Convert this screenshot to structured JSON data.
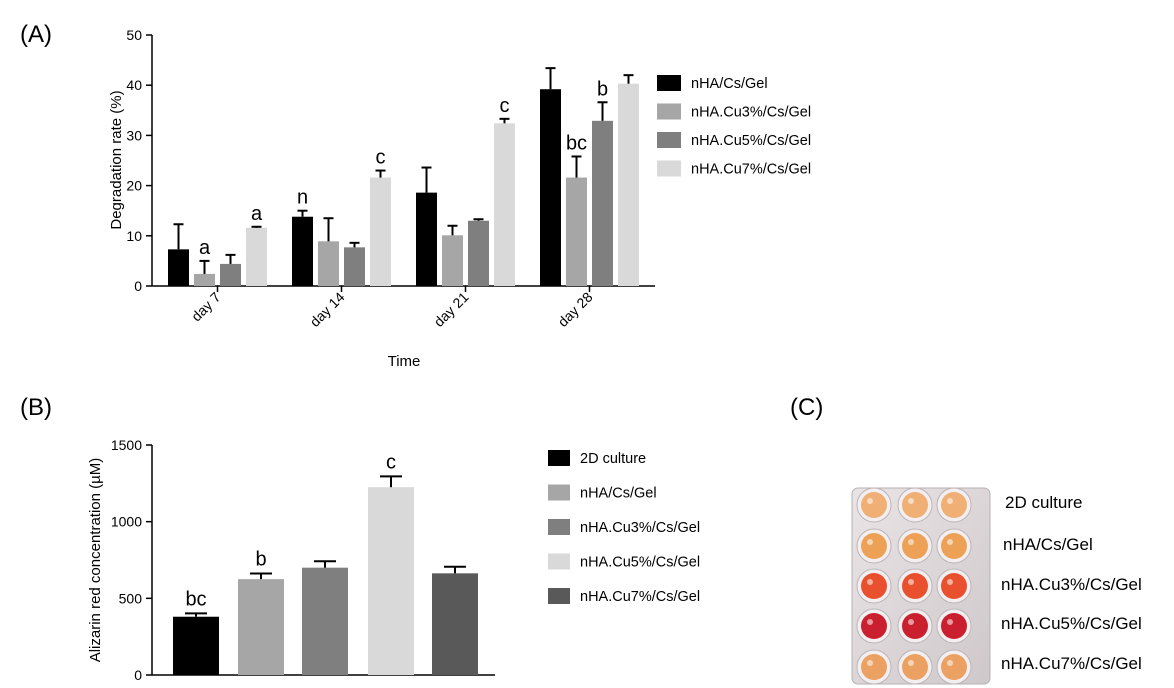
{
  "panels": {
    "a": "(A)",
    "b": "(B)",
    "c": "(C)"
  },
  "chart_data": [
    {
      "id": "A",
      "type": "bar",
      "title": "",
      "xlabel": "Time",
      "ylabel": "Degradation rate (%)",
      "ylim": [
        0,
        50
      ],
      "yticks": [
        0,
        10,
        20,
        30,
        40,
        50
      ],
      "categories": [
        "day 7",
        "day 14",
        "day 21",
        "day 28"
      ],
      "series": [
        {
          "name": "nHA/Cs/Gel",
          "color": "#000000",
          "values": [
            7.3,
            13.8,
            18.6,
            39.2
          ],
          "errors": [
            5.0,
            1.2,
            5.0,
            4.2
          ],
          "labels": [
            "",
            "n",
            "",
            ""
          ]
        },
        {
          "name": "nHA.Cu3%/Cs/Gel",
          "color": "#a6a6a6",
          "values": [
            2.4,
            8.9,
            10.1,
            21.6
          ],
          "errors": [
            2.6,
            4.6,
            1.9,
            4.2
          ],
          "labels": [
            "a",
            "",
            "",
            "bc"
          ]
        },
        {
          "name": "nHA.Cu5%/Cs/Gel",
          "color": "#7f7f7f",
          "values": [
            4.4,
            7.7,
            13.0,
            32.9
          ],
          "errors": [
            1.8,
            0.9,
            0.3,
            3.7
          ],
          "labels": [
            "",
            "",
            "",
            "b"
          ]
        },
        {
          "name": "nHA.Cu7%/Cs/Gel",
          "color": "#d9d9d9",
          "values": [
            11.6,
            21.6,
            32.4,
            40.3
          ],
          "errors": [
            0.2,
            1.4,
            0.9,
            1.7
          ],
          "labels": [
            "a",
            "c",
            "c",
            ""
          ]
        }
      ]
    },
    {
      "id": "B",
      "type": "bar",
      "title": "",
      "xlabel": "",
      "ylabel": "Alizarin red concentration (µM)",
      "ylim": [
        0,
        1500
      ],
      "yticks": [
        0,
        500,
        1000,
        1500
      ],
      "categories": [
        "2D culture",
        "nHA/Cs/Gel",
        "nHA.Cu3%/Cs/Gel",
        "nHA.Cu5%/Cs/Gel",
        "nHA.Cu7%/Cs/Gel"
      ],
      "colors": [
        "#000000",
        "#a6a6a6",
        "#7f7f7f",
        "#d9d9d9",
        "#595959"
      ],
      "values": [
        380,
        625,
        700,
        1225,
        663
      ],
      "errors": [
        22,
        37,
        42,
        70,
        43
      ],
      "labels": [
        "bc",
        "b",
        "",
        "c",
        ""
      ]
    }
  ],
  "photo": {
    "labels": [
      "2D culture",
      "nHA/Cs/Gel",
      "nHA.Cu3%/Cs/Gel",
      "nHA.Cu5%/Cs/Gel",
      "nHA.Cu7%/Cs/Gel"
    ],
    "row_colors": [
      "#efa96a",
      "#ec9a4a",
      "#e8421c",
      "#c50d1e",
      "#ea9a56"
    ]
  }
}
